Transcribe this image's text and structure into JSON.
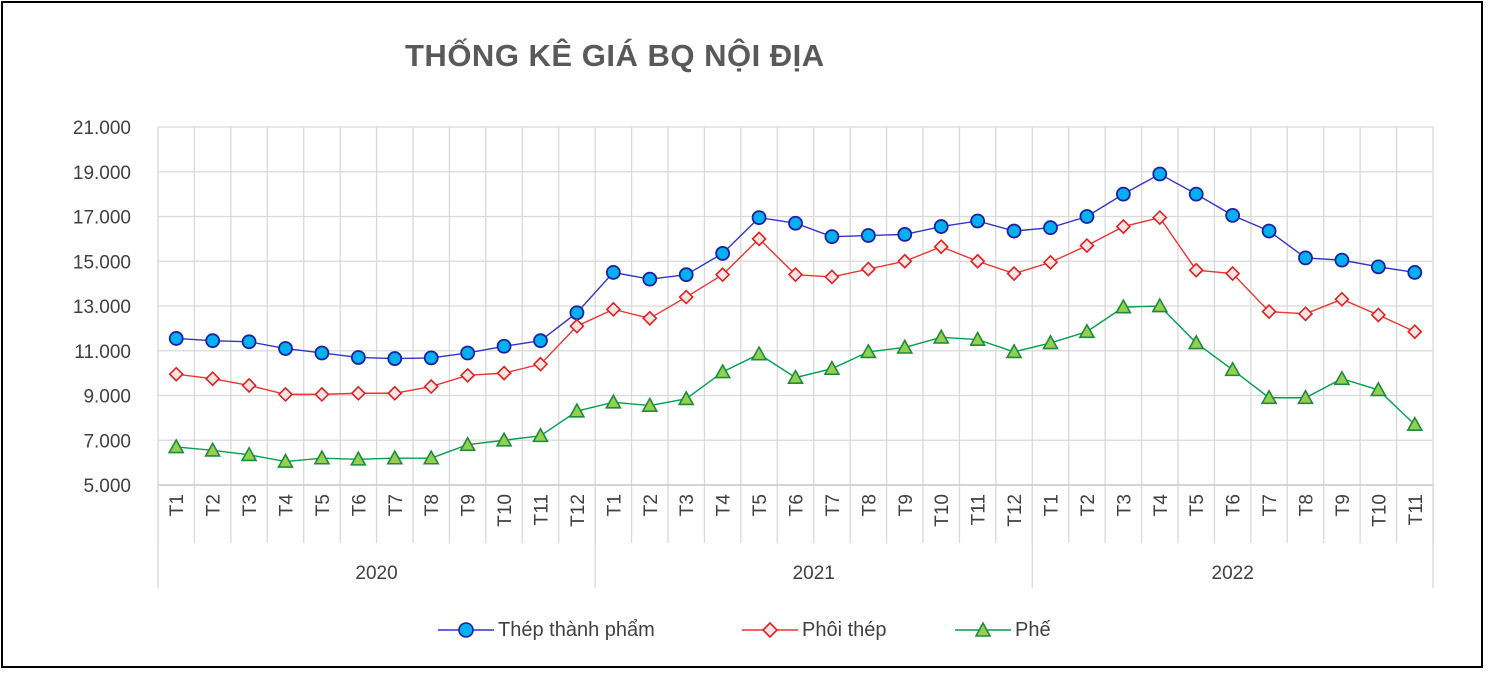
{
  "chart_data": {
    "type": "line",
    "title": "THỐNG KÊ GIÁ BQ NỘI ĐỊA",
    "xlabel": "",
    "ylabel": "",
    "ylim": [
      5000,
      21000
    ],
    "y_ticks": [
      "5.000",
      "7.000",
      "9.000",
      "11.000",
      "13.000",
      "15.000",
      "17.000",
      "19.000",
      "21.000"
    ],
    "grid": true,
    "legend_position": "bottom",
    "groups": [
      {
        "label": "2020",
        "months": [
          "T1",
          "T2",
          "T3",
          "T4",
          "T5",
          "T6",
          "T7",
          "T8",
          "T9",
          "T10",
          "T11",
          "T12"
        ]
      },
      {
        "label": "2021",
        "months": [
          "T1",
          "T2",
          "T3",
          "T4",
          "T5",
          "T6",
          "T7",
          "T8",
          "T9",
          "T10",
          "T11",
          "T12"
        ]
      },
      {
        "label": "2022",
        "months": [
          "T1",
          "T2",
          "T3",
          "T4",
          "T5",
          "T6",
          "T7",
          "T8",
          "T9",
          "T10",
          "T11"
        ]
      }
    ],
    "series": [
      {
        "name": "Thép thành phẩm",
        "color": "#3333cc",
        "marker": "circle",
        "marker_fill": "#00b0f0",
        "marker_stroke": "#1f1fa0",
        "values": [
          11550,
          11450,
          11400,
          11100,
          10900,
          10700,
          10650,
          10680,
          10900,
          11200,
          11450,
          12700,
          14500,
          14200,
          14400,
          15350,
          16950,
          16700,
          16100,
          16150,
          16200,
          16550,
          16800,
          16350,
          16500,
          17000,
          18000,
          18900,
          18000,
          17050,
          16350,
          15150,
          15050,
          14750,
          14500
        ]
      },
      {
        "name": "Phôi thép",
        "color": "#ee3333",
        "marker": "diamond",
        "marker_fill": "#fce4e4",
        "marker_stroke": "#e02020",
        "values": [
          9950,
          9750,
          9450,
          9050,
          9050,
          9100,
          9100,
          9400,
          9900,
          10000,
          10400,
          12100,
          12850,
          12450,
          13400,
          14400,
          16000,
          14400,
          14300,
          14650,
          15000,
          15650,
          15000,
          14450,
          14950,
          15700,
          16550,
          16950,
          14600,
          14450,
          12750,
          12650,
          13300,
          12600,
          11850
        ]
      },
      {
        "name": "Phế",
        "color": "#00a050",
        "marker": "triangle",
        "marker_fill": "#92d050",
        "marker_stroke": "#1e8a3c",
        "values": [
          6700,
          6550,
          6350,
          6050,
          6200,
          6150,
          6200,
          6200,
          6800,
          7000,
          7200,
          8300,
          8700,
          8550,
          8850,
          10050,
          10850,
          9800,
          10200,
          10950,
          11150,
          11600,
          11500,
          10950,
          11350,
          11850,
          12950,
          13000,
          11350,
          10150,
          8900,
          8900,
          9750,
          9250,
          7700
        ]
      }
    ]
  }
}
